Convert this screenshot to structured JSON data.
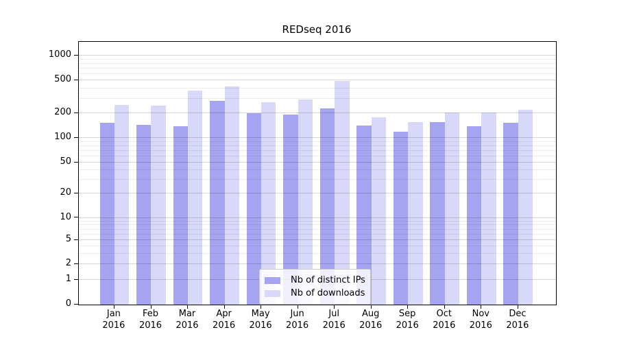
{
  "chart_data": {
    "type": "bar",
    "title": "REDseq 2016",
    "categories": [
      "Jan",
      "Feb",
      "Mar",
      "Apr",
      "May",
      "Jun",
      "Jul",
      "Aug",
      "Sep",
      "Oct",
      "Nov",
      "Dec"
    ],
    "year_label": "2016",
    "series": [
      {
        "name": "Nb of distinct IPs",
        "color": "#a4a4f0",
        "values": [
          154,
          143,
          140,
          281,
          199,
          194,
          227,
          142,
          120,
          155,
          140,
          152
        ]
      },
      {
        "name": "Nb of downloads",
        "color": "#d8d8f8",
        "values": [
          253,
          245,
          375,
          419,
          274,
          293,
          490,
          177,
          156,
          203,
          204,
          222
        ]
      }
    ],
    "yscale": "symlog",
    "y_ticks": [
      0,
      1,
      2,
      5,
      10,
      20,
      50,
      100,
      200,
      500,
      1000
    ],
    "ylim": [
      0,
      1500
    ],
    "xlabel": "",
    "ylabel": "",
    "grid": "horizontal major and minor, drawn over bars",
    "legend_position": "lower center"
  },
  "colors": {
    "bar_dark": "#a4a4f0",
    "bar_light": "#d8d8f8",
    "grid_major": "#d6d6d6",
    "grid_minor": "#ebebeb",
    "spine": "#000000",
    "legend_border": "#cccccc"
  }
}
